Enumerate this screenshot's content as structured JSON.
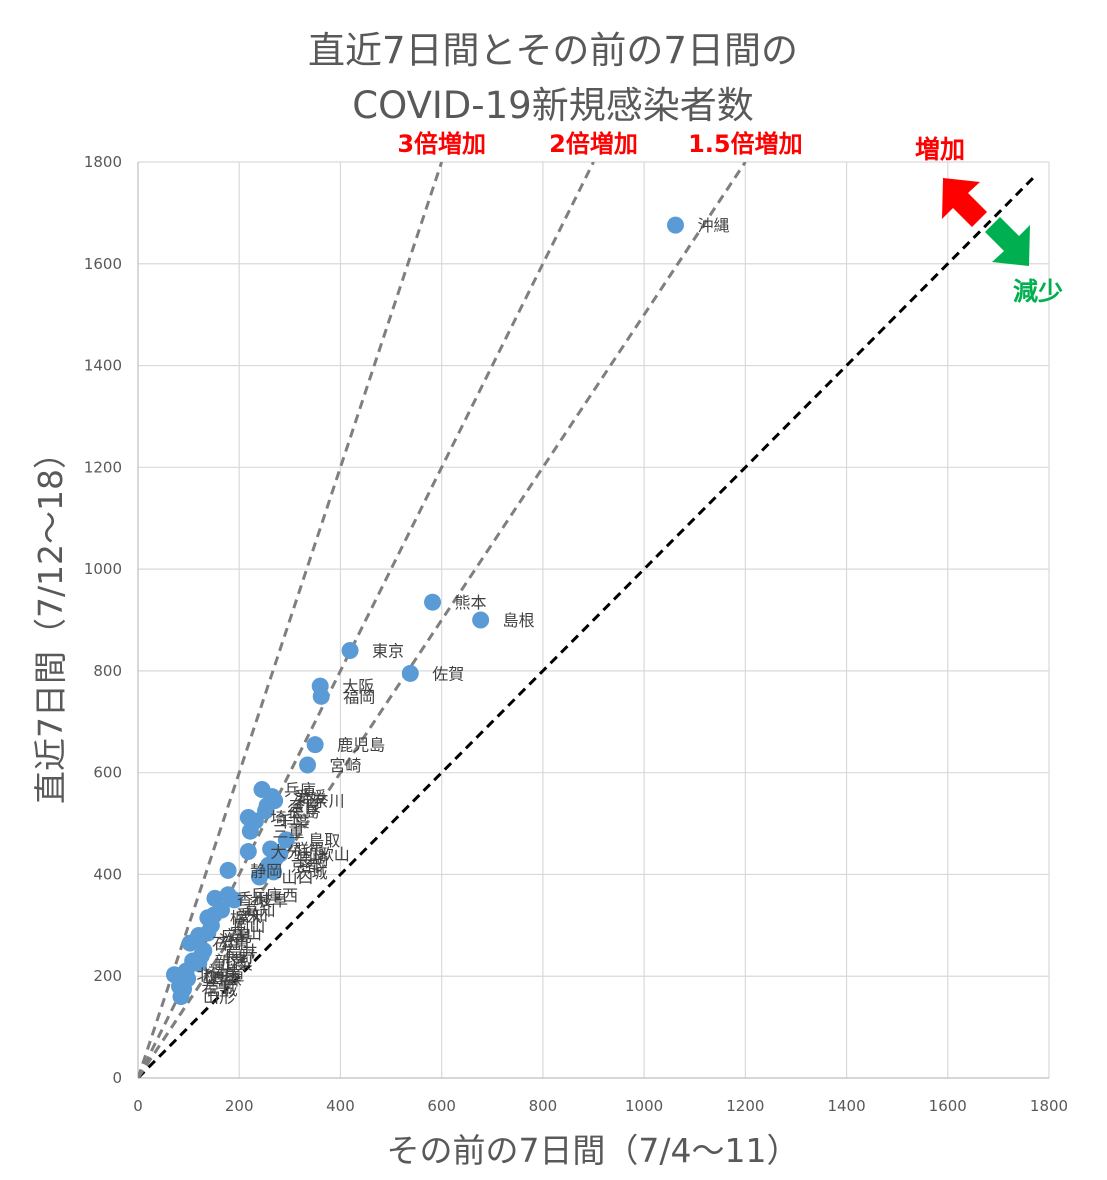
{
  "chart_data": {
    "type": "scatter",
    "title_line1": "直近7日間とその前の7日間の",
    "title_line2": "COVID-19新規感染者数",
    "xlabel": "その前の7日間（7/4〜11）",
    "ylabel": "直近7日間（7/12〜18）",
    "xlim": [
      0,
      1800
    ],
    "ylim": [
      0,
      1800
    ],
    "xticks": [
      "0",
      "200",
      "400",
      "600",
      "800",
      "1000",
      "1200",
      "1400",
      "1600",
      "1800"
    ],
    "yticks": [
      "0",
      "200",
      "400",
      "600",
      "800",
      "1000",
      "1200",
      "1400",
      "1600",
      "1800"
    ],
    "grid": true,
    "point_color": "#5b9bd5",
    "reference_lines": [
      {
        "name": "equal",
        "slope": 1,
        "label": "",
        "color": "#000000"
      },
      {
        "name": "ratio-1.5",
        "slope": 1.5,
        "label": "1.5倍増加",
        "color": "#7f7f7f"
      },
      {
        "name": "ratio-2",
        "slope": 2,
        "label": "2倍増加",
        "color": "#7f7f7f"
      },
      {
        "name": "ratio-3",
        "slope": 3,
        "label": "3倍増加",
        "color": "#7f7f7f"
      }
    ],
    "arrows": {
      "increase_label": "増加",
      "decrease_label": "減少",
      "increase_color": "#ff0000",
      "decrease_color": "#00b050"
    },
    "points": [
      {
        "label": "沖縄",
        "x": 1062,
        "y": 1676
      },
      {
        "label": "熊本",
        "x": 582,
        "y": 935
      },
      {
        "label": "島根",
        "x": 677,
        "y": 900
      },
      {
        "label": "東京",
        "x": 419,
        "y": 840
      },
      {
        "label": "佐賀",
        "x": 538,
        "y": 795
      },
      {
        "label": "大阪",
        "x": 360,
        "y": 770
      },
      {
        "label": "福岡",
        "x": 362,
        "y": 750
      },
      {
        "label": "鹿児島",
        "x": 350,
        "y": 655
      },
      {
        "label": "宮崎",
        "x": 335,
        "y": 615
      },
      {
        "label": "兵庫",
        "x": 245,
        "y": 567
      },
      {
        "label": "愛媛",
        "x": 265,
        "y": 553
      },
      {
        "label": "神奈川",
        "x": 270,
        "y": 545
      },
      {
        "label": "奈良",
        "x": 255,
        "y": 535
      },
      {
        "label": "徳島",
        "x": 252,
        "y": 525
      },
      {
        "label": "埼玉",
        "x": 218,
        "y": 512
      },
      {
        "label": "千葉",
        "x": 232,
        "y": 505
      },
      {
        "label": "三重",
        "x": 222,
        "y": 485
      },
      {
        "label": "鳥取",
        "x": 293,
        "y": 468
      },
      {
        "label": "群馬",
        "x": 262,
        "y": 450
      },
      {
        "label": "和歌山",
        "x": 280,
        "y": 440
      },
      {
        "label": "大分",
        "x": 218,
        "y": 445
      },
      {
        "label": "長崎",
        "x": 270,
        "y": 430
      },
      {
        "label": "京都",
        "x": 258,
        "y": 418
      },
      {
        "label": "静岡",
        "x": 178,
        "y": 408
      },
      {
        "label": "茨城",
        "x": 268,
        "y": 405
      },
      {
        "label": "山口",
        "x": 240,
        "y": 395
      },
      {
        "label": "香川",
        "x": 152,
        "y": 353
      },
      {
        "label": "兵庫西",
        "x": 178,
        "y": 360
      },
      {
        "label": "岐阜",
        "x": 190,
        "y": 350
      },
      {
        "label": "高知",
        "x": 165,
        "y": 330
      },
      {
        "label": "栃木",
        "x": 138,
        "y": 315
      },
      {
        "label": "愛知",
        "x": 150,
        "y": 320
      },
      {
        "label": "岡山",
        "x": 145,
        "y": 300
      },
      {
        "label": "広島",
        "x": 120,
        "y": 280
      },
      {
        "label": "富山",
        "x": 138,
        "y": 285
      },
      {
        "label": "石川",
        "x": 103,
        "y": 265
      },
      {
        "label": "滋賀",
        "x": 115,
        "y": 270
      },
      {
        "label": "福井",
        "x": 130,
        "y": 250
      },
      {
        "label": "長野",
        "x": 125,
        "y": 240
      },
      {
        "label": "新潟",
        "x": 108,
        "y": 230
      },
      {
        "label": "山梨",
        "x": 120,
        "y": 225
      },
      {
        "label": "福島",
        "x": 95,
        "y": 210
      },
      {
        "label": "北海道",
        "x": 72,
        "y": 203
      },
      {
        "label": "秋田",
        "x": 85,
        "y": 200
      },
      {
        "label": "青森",
        "x": 98,
        "y": 195
      },
      {
        "label": "岩手",
        "x": 82,
        "y": 180
      },
      {
        "label": "宮城",
        "x": 90,
        "y": 175
      },
      {
        "label": "山形",
        "x": 85,
        "y": 160
      }
    ]
  }
}
